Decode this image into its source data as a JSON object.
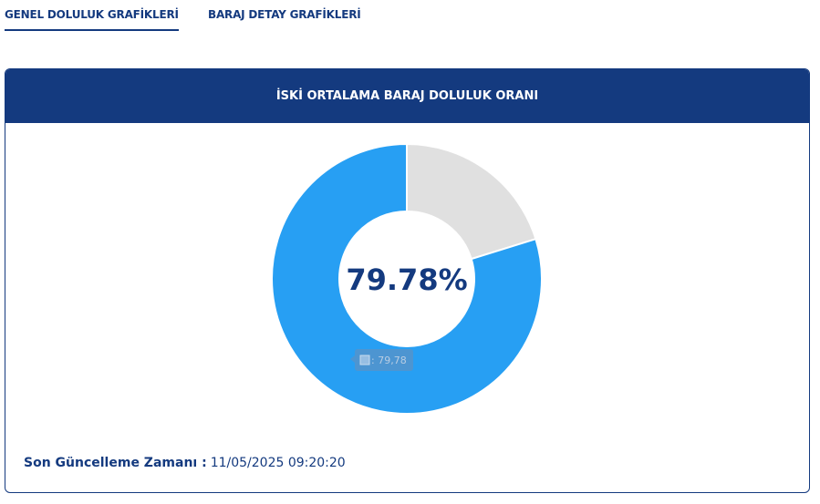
{
  "tabs": [
    {
      "label": "GENEL DOLULUK GRAFİKLERİ",
      "active": true
    },
    {
      "label": "BARAJ DETAY GRAFİKLERİ",
      "active": false
    }
  ],
  "chart_data": {
    "type": "donut",
    "title": "İSKİ ORTALAMA BARAJ DOLULUK ORANI",
    "values": [
      79.78,
      20.22
    ],
    "colors": [
      "#279ff3",
      "#e0e0e0"
    ],
    "value_labels": [
      "79.78%",
      null
    ],
    "tooltip_label": ": 79,78"
  },
  "footer": {
    "label": "Son Güncelleme Zamanı :",
    "value": "11/05/2025 09:20:20"
  }
}
